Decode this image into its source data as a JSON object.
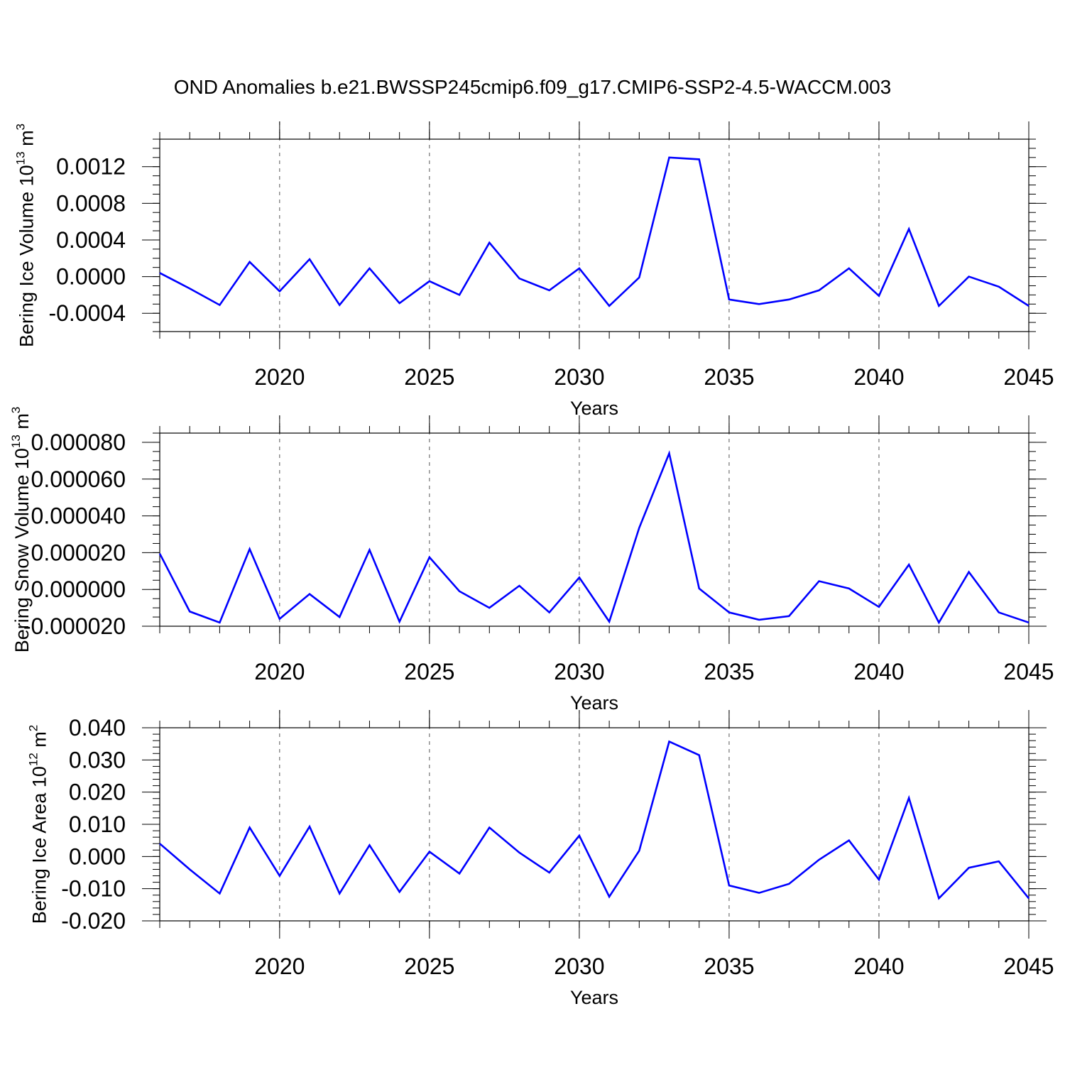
{
  "figure_title": "OND Anomalies b.e21.BWSSP245cmip6.f09_g17.CMIP6-SSP2-4.5-WACCM.003",
  "colors": {
    "line": "#0000ff",
    "axis": "#000000",
    "grid": "#555555",
    "background": "#ffffff"
  },
  "chart_data": [
    {
      "type": "line",
      "title": "OND Anomalies b.e21.BWSSP245cmip6.f09_g17.CMIP6-SSP2-4.5-WACCM.003",
      "ylabel": {
        "text": "Bering Ice Volume 10",
        "sup1": "13",
        "unit": " m",
        "sup2": "3"
      },
      "xlabel": "Years",
      "xlim": [
        2016,
        2045
      ],
      "ylim": [
        -0.0006,
        0.0015
      ],
      "grid": "vertical dashed",
      "x_ticks": [
        2020,
        2025,
        2030,
        2035,
        2040,
        2045
      ],
      "x_tick_labels": [
        "2020",
        "2025",
        "2030",
        "2035",
        "2040",
        "2045"
      ],
      "y_ticks": [
        -0.0004,
        0.0,
        0.0004,
        0.0008,
        0.0012
      ],
      "y_tick_labels": [
        "-0.0004",
        "0.0000",
        "0.0004",
        "0.0008",
        "0.0012"
      ],
      "x_minor_step": 1,
      "y_minor_step": 0.0001,
      "series": [
        {
          "x": [
            2016,
            2017,
            2018,
            2019,
            2020,
            2021,
            2022,
            2023,
            2024,
            2025,
            2026,
            2027,
            2028,
            2029,
            2030,
            2031,
            2032,
            2033,
            2034,
            2035,
            2036,
            2037,
            2038,
            2039,
            2040,
            2041,
            2042,
            2043,
            2044,
            2045
          ],
          "values": [
            4e-05,
            -0.00013,
            -0.00031,
            0.00016,
            -0.00016,
            0.00019,
            -0.00031,
            9e-05,
            -0.00029,
            -5e-05,
            -0.0002,
            0.00037,
            -2e-05,
            -0.00015,
            9e-05,
            -0.00032,
            -1e-05,
            0.0013,
            0.00128,
            -0.00025,
            -0.0003,
            -0.00025,
            -0.00015,
            9e-05,
            -0.00021,
            0.00052,
            -0.00032,
            0.0,
            -0.00011,
            -0.00032
          ]
        }
      ]
    },
    {
      "type": "line",
      "ylabel": {
        "text": "Bering Snow Volume 10",
        "sup1": "13",
        "unit": " m",
        "sup2": "3"
      },
      "xlabel": "Years",
      "xlim": [
        2016,
        2045
      ],
      "ylim": [
        -2e-05,
        8.5e-05
      ],
      "grid": "vertical dashed",
      "x_ticks": [
        2020,
        2025,
        2030,
        2035,
        2040,
        2045
      ],
      "x_tick_labels": [
        "2020",
        "2025",
        "2030",
        "2035",
        "2040",
        "2045"
      ],
      "y_ticks": [
        -2e-05,
        0.0,
        2e-05,
        4e-05,
        6e-05,
        8e-05
      ],
      "y_tick_labels": [
        "-0.000020",
        "0.000000",
        "0.000020",
        "0.000040",
        "0.000060",
        "0.000080"
      ],
      "x_minor_step": 1,
      "y_minor_step": 5e-06,
      "series": [
        {
          "x": [
            2016,
            2017,
            2018,
            2019,
            2020,
            2021,
            2022,
            2023,
            2024,
            2025,
            2026,
            2027,
            2028,
            2029,
            2030,
            2031,
            2032,
            2033,
            2034,
            2035,
            2036,
            2037,
            2038,
            2039,
            2040,
            2041,
            2042,
            2043,
            2044,
            2045
          ],
          "values": [
            1.95e-05,
            -1.2e-05,
            -1.8e-05,
            2.2e-05,
            -1.6e-05,
            -2.5e-06,
            -1.5e-05,
            2.15e-05,
            -1.75e-05,
            1.75e-05,
            -1e-06,
            -1e-05,
            2e-06,
            -1.25e-05,
            6.5e-06,
            -1.75e-05,
            3.35e-05,
            7.4e-05,
            5e-07,
            -1.25e-05,
            -1.65e-05,
            -1.45e-05,
            4.5e-06,
            5e-07,
            -9.5e-06,
            1.35e-05,
            -1.8e-05,
            9.5e-06,
            -1.25e-05,
            -1.8e-05
          ]
        }
      ]
    },
    {
      "type": "line",
      "ylabel": {
        "text": "Bering Ice Area 10",
        "sup1": "12",
        "unit": " m",
        "sup2": "2"
      },
      "xlabel": "Years",
      "xlim": [
        2016,
        2045
      ],
      "ylim": [
        -0.02,
        0.04
      ],
      "grid": "vertical dashed",
      "x_ticks": [
        2020,
        2025,
        2030,
        2035,
        2040,
        2045
      ],
      "x_tick_labels": [
        "2020",
        "2025",
        "2030",
        "2035",
        "2040",
        "2045"
      ],
      "y_ticks": [
        -0.02,
        -0.01,
        0.0,
        0.01,
        0.02,
        0.03,
        0.04
      ],
      "y_tick_labels": [
        "-0.020",
        "-0.010",
        "0.000",
        "0.010",
        "0.020",
        "0.030",
        "0.040"
      ],
      "x_minor_step": 1,
      "y_minor_step": 0.002,
      "series": [
        {
          "x": [
            2016,
            2017,
            2018,
            2019,
            2020,
            2021,
            2022,
            2023,
            2024,
            2025,
            2026,
            2027,
            2028,
            2029,
            2030,
            2031,
            2032,
            2033,
            2034,
            2035,
            2036,
            2037,
            2038,
            2039,
            2040,
            2041,
            2042,
            2043,
            2044,
            2045
          ],
          "values": [
            0.004,
            -0.004,
            -0.0115,
            0.009,
            -0.006,
            0.0093,
            -0.0115,
            0.0035,
            -0.011,
            0.0015,
            -0.0053,
            0.009,
            0.0012,
            -0.005,
            0.0065,
            -0.0125,
            0.0018,
            0.0357,
            0.0315,
            -0.009,
            -0.0113,
            -0.0085,
            -0.001,
            0.005,
            -0.0072,
            0.0182,
            -0.013,
            -0.0035,
            -0.0015,
            -0.013
          ]
        }
      ]
    }
  ]
}
